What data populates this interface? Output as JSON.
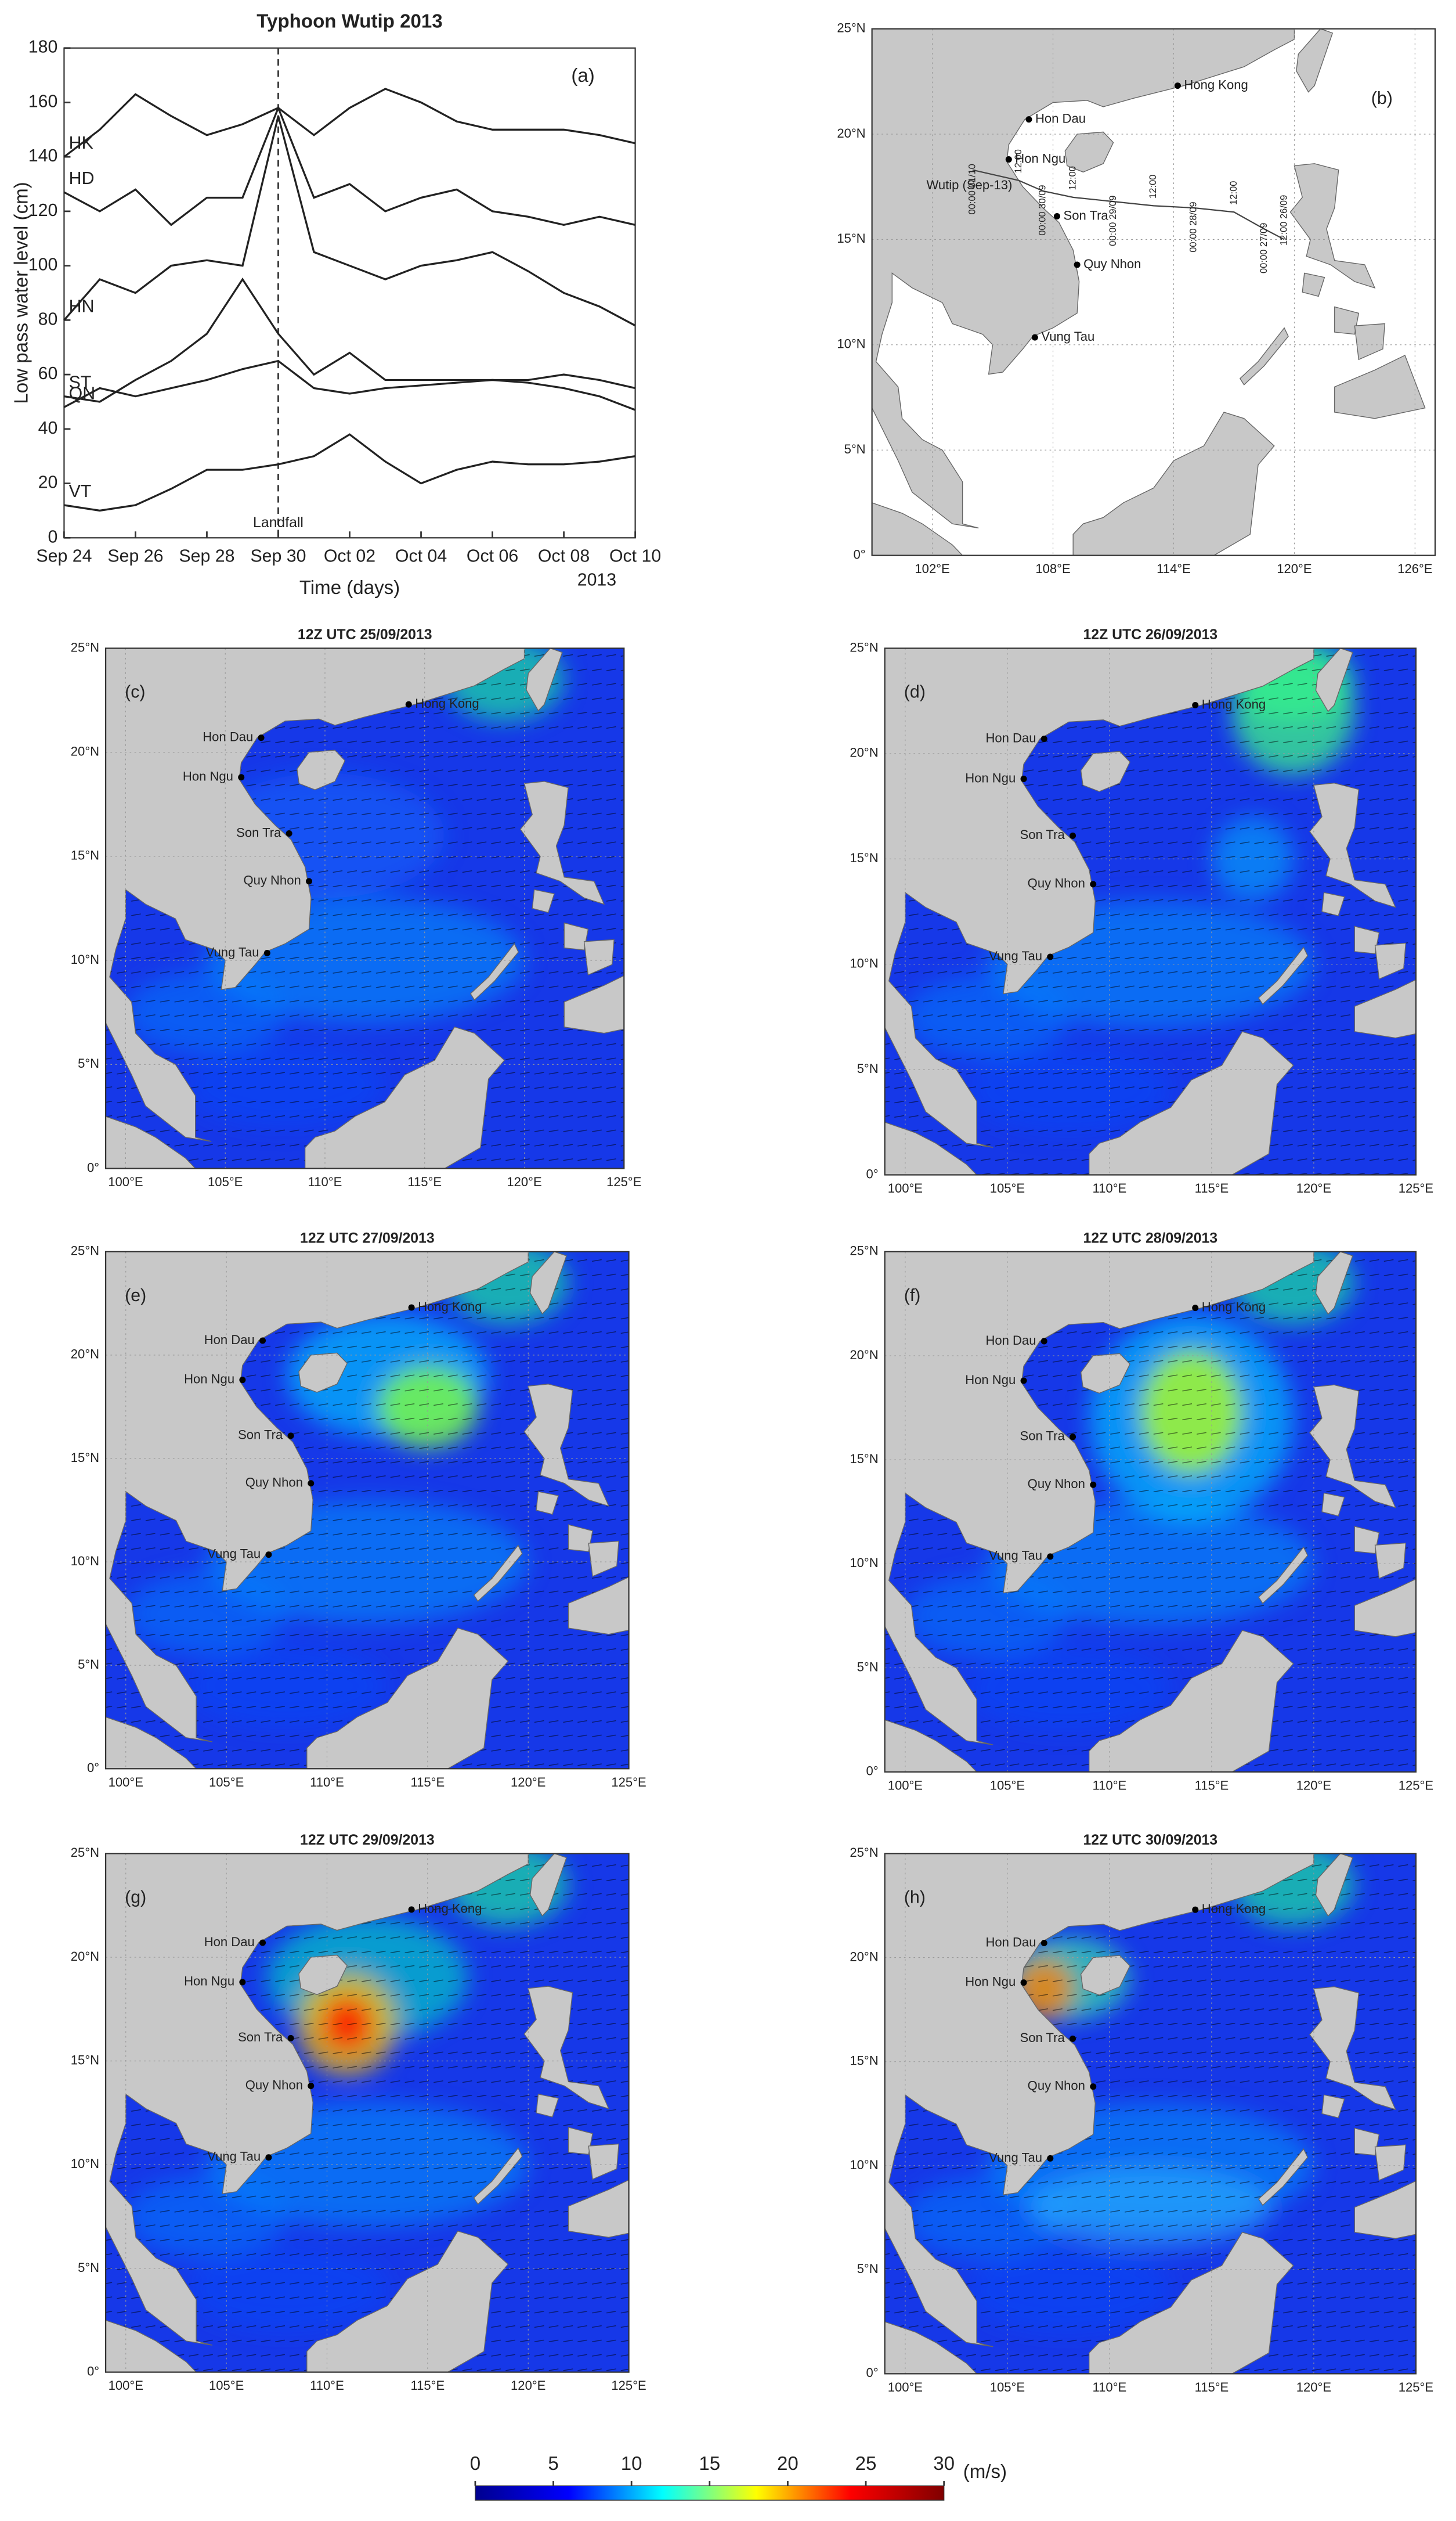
{
  "stations": [
    {
      "name": "Hong Kong",
      "lon": 114.2,
      "lat": 22.3
    },
    {
      "name": "Hon Dau",
      "lon": 106.8,
      "lat": 20.7
    },
    {
      "name": "Hon Ngu",
      "lon": 105.8,
      "lat": 18.8
    },
    {
      "name": "Son Tra",
      "lon": 108.2,
      "lat": 16.1
    },
    {
      "name": "Quy Nhon",
      "lon": 109.2,
      "lat": 13.8
    },
    {
      "name": "Vung Tau",
      "lon": 107.1,
      "lat": 10.35
    }
  ],
  "chart_data": [
    {
      "type": "line",
      "title": "Typhoon Wutip 2013",
      "panel_label": "(a)",
      "xlabel": "Time (days)",
      "ylabel": "Low pass water level (cm)",
      "year_label": "2013",
      "annotation": {
        "text": "Landfall",
        "x": 6
      },
      "x": [
        0,
        1,
        2,
        3,
        4,
        5,
        6,
        7,
        8,
        9,
        10,
        11,
        12,
        13,
        14,
        15,
        16
      ],
      "xlim": [
        0,
        16
      ],
      "xticks": [
        {
          "value": 0,
          "label": "Sep 24"
        },
        {
          "value": 2,
          "label": "Sep 26"
        },
        {
          "value": 4,
          "label": "Sep 28"
        },
        {
          "value": 6,
          "label": "Sep 30"
        },
        {
          "value": 8,
          "label": "Oct 02"
        },
        {
          "value": 10,
          "label": "Oct 04"
        },
        {
          "value": 12,
          "label": "Oct 06"
        },
        {
          "value": 14,
          "label": "Oct 08"
        },
        {
          "value": 16,
          "label": "Oct 10"
        }
      ],
      "ylim": [
        0,
        180
      ],
      "yticks": [
        0,
        20,
        40,
        60,
        80,
        100,
        120,
        140,
        160,
        180
      ],
      "series": [
        {
          "name": "HK",
          "color": "#222222",
          "values": [
            140,
            150,
            163,
            155,
            148,
            152,
            158,
            148,
            158,
            165,
            160,
            153,
            150,
            150,
            150,
            148,
            145
          ]
        },
        {
          "name": "HD",
          "color": "#222222",
          "values": [
            127,
            120,
            128,
            115,
            125,
            125,
            158,
            125,
            130,
            120,
            125,
            128,
            120,
            118,
            115,
            118,
            115
          ]
        },
        {
          "name": "HN",
          "color": "#222222",
          "values": [
            80,
            95,
            90,
            100,
            102,
            100,
            155,
            105,
            100,
            95,
            100,
            102,
            105,
            98,
            90,
            85,
            78
          ]
        },
        {
          "name": "ST",
          "color": "#222222",
          "values": [
            52,
            50,
            58,
            65,
            75,
            95,
            75,
            60,
            68,
            58,
            58,
            58,
            58,
            58,
            60,
            58,
            55
          ]
        },
        {
          "name": "QN",
          "color": "#222222",
          "values": [
            48,
            55,
            52,
            55,
            58,
            62,
            65,
            55,
            53,
            55,
            56,
            57,
            58,
            57,
            55,
            52,
            47
          ]
        },
        {
          "name": "VT",
          "color": "#222222",
          "values": [
            12,
            10,
            12,
            18,
            25,
            25,
            27,
            30,
            38,
            28,
            20,
            25,
            28,
            27,
            27,
            28,
            30
          ]
        }
      ]
    },
    {
      "type": "map",
      "panel_label": "(b)",
      "sea_color": "#ffffff",
      "xlim": [
        99,
        127
      ],
      "ylim": [
        0,
        25
      ],
      "xticks": [
        {
          "value": 102,
          "label": "102°E"
        },
        {
          "value": 108,
          "label": "108°E"
        },
        {
          "value": 114,
          "label": "114°E"
        },
        {
          "value": 120,
          "label": "120°E"
        },
        {
          "value": 126,
          "label": "126°E"
        }
      ],
      "yticks": [
        {
          "value": 0,
          "label": "0°"
        },
        {
          "value": 5,
          "label": "5°N"
        },
        {
          "value": 10,
          "label": "10°N"
        },
        {
          "value": 15,
          "label": "15°N"
        },
        {
          "value": 20,
          "label": "20°N"
        },
        {
          "value": 25,
          "label": "25°N"
        }
      ],
      "track": {
        "name": "Wutip (Sep-13)",
        "lon": [
          119.5,
          118.5,
          117,
          115,
          113,
          111,
          109,
          107.5,
          106.3,
          104
        ],
        "lat": [
          15,
          15.5,
          16.3,
          16.5,
          16.6,
          16.8,
          17,
          17.3,
          17.8,
          18.3
        ],
        "labels": [
          "12:00 26/09",
          "00:00 27/09",
          "12:00",
          "00:00 28/09",
          "12:00",
          "00:00 29/09",
          "12:00",
          "00:00 30/09",
          "12:00",
          "00:00 01/10"
        ]
      }
    },
    {
      "type": "wind",
      "title": "12Z UTC 25/09/2013",
      "panel_label": "(c)",
      "xlim": [
        99,
        125
      ],
      "ylim": [
        0,
        25
      ],
      "xticks": [
        {
          "value": 100,
          "label": "100°E"
        },
        {
          "value": 105,
          "label": "105°E"
        },
        {
          "value": 110,
          "label": "110°E"
        },
        {
          "value": 115,
          "label": "115°E"
        },
        {
          "value": 120,
          "label": "120°E"
        },
        {
          "value": 125,
          "label": "125°E"
        }
      ],
      "yticks": [
        {
          "value": 0,
          "label": "0°"
        },
        {
          "value": 5,
          "label": "5°N"
        },
        {
          "value": 10,
          "label": "10°N"
        },
        {
          "value": 15,
          "label": "15°N"
        },
        {
          "value": 20,
          "label": "20°N"
        },
        {
          "value": 25,
          "label": "25°N"
        }
      ]
    },
    {
      "type": "wind",
      "title": "12Z UTC 26/09/2013",
      "panel_label": "(d)",
      "xlim": [
        99,
        125
      ],
      "ylim": [
        0,
        25
      ],
      "xticks": [
        {
          "value": 100,
          "label": "100°E"
        },
        {
          "value": 105,
          "label": "105°E"
        },
        {
          "value": 110,
          "label": "110°E"
        },
        {
          "value": 115,
          "label": "115°E"
        },
        {
          "value": 120,
          "label": "120°E"
        },
        {
          "value": 125,
          "label": "125°E"
        }
      ],
      "yticks": [
        {
          "value": 0,
          "label": "0°"
        },
        {
          "value": 5,
          "label": "5°N"
        },
        {
          "value": 10,
          "label": "10°N"
        },
        {
          "value": 15,
          "label": "15°N"
        },
        {
          "value": 20,
          "label": "20°N"
        },
        {
          "value": 25,
          "label": "25°N"
        }
      ]
    },
    {
      "type": "wind",
      "title": "12Z UTC 27/09/2013",
      "panel_label": "(e)",
      "xlim": [
        99,
        125
      ],
      "ylim": [
        0,
        25
      ],
      "xticks": [
        {
          "value": 100,
          "label": "100°E"
        },
        {
          "value": 105,
          "label": "105°E"
        },
        {
          "value": 110,
          "label": "110°E"
        },
        {
          "value": 115,
          "label": "115°E"
        },
        {
          "value": 120,
          "label": "120°E"
        },
        {
          "value": 125,
          "label": "125°E"
        }
      ],
      "yticks": [
        {
          "value": 0,
          "label": "0°"
        },
        {
          "value": 5,
          "label": "5°N"
        },
        {
          "value": 10,
          "label": "10°N"
        },
        {
          "value": 15,
          "label": "15°N"
        },
        {
          "value": 20,
          "label": "20°N"
        },
        {
          "value": 25,
          "label": "25°N"
        }
      ]
    },
    {
      "type": "wind",
      "title": "12Z UTC 28/09/2013",
      "panel_label": "(f)",
      "xlim": [
        99,
        125
      ],
      "ylim": [
        0,
        25
      ],
      "xticks": [
        {
          "value": 100,
          "label": "100°E"
        },
        {
          "value": 105,
          "label": "105°E"
        },
        {
          "value": 110,
          "label": "110°E"
        },
        {
          "value": 115,
          "label": "115°E"
        },
        {
          "value": 120,
          "label": "120°E"
        },
        {
          "value": 125,
          "label": "125°E"
        }
      ],
      "yticks": [
        {
          "value": 0,
          "label": "0°"
        },
        {
          "value": 5,
          "label": "5°N"
        },
        {
          "value": 10,
          "label": "10°N"
        },
        {
          "value": 15,
          "label": "15°N"
        },
        {
          "value": 20,
          "label": "20°N"
        },
        {
          "value": 25,
          "label": "25°N"
        }
      ]
    },
    {
      "type": "wind",
      "title": "12Z UTC 29/09/2013",
      "panel_label": "(g)",
      "xlim": [
        99,
        125
      ],
      "ylim": [
        0,
        25
      ],
      "xticks": [
        {
          "value": 100,
          "label": "100°E"
        },
        {
          "value": 105,
          "label": "105°E"
        },
        {
          "value": 110,
          "label": "110°E"
        },
        {
          "value": 115,
          "label": "115°E"
        },
        {
          "value": 120,
          "label": "120°E"
        },
        {
          "value": 125,
          "label": "125°E"
        }
      ],
      "yticks": [
        {
          "value": 0,
          "label": "0°"
        },
        {
          "value": 5,
          "label": "5°N"
        },
        {
          "value": 10,
          "label": "10°N"
        },
        {
          "value": 15,
          "label": "15°N"
        },
        {
          "value": 20,
          "label": "20°N"
        },
        {
          "value": 25,
          "label": "25°N"
        }
      ]
    },
    {
      "type": "wind",
      "title": "12Z UTC 30/09/2013",
      "panel_label": "(h)",
      "xlim": [
        99,
        125
      ],
      "ylim": [
        0,
        25
      ],
      "xticks": [
        {
          "value": 100,
          "label": "100°E"
        },
        {
          "value": 105,
          "label": "105°E"
        },
        {
          "value": 110,
          "label": "110°E"
        },
        {
          "value": 115,
          "label": "115°E"
        },
        {
          "value": 120,
          "label": "120°E"
        },
        {
          "value": 125,
          "label": "125°E"
        }
      ],
      "yticks": [
        {
          "value": 0,
          "label": "0°"
        },
        {
          "value": 5,
          "label": "5°N"
        },
        {
          "value": 10,
          "label": "10°N"
        },
        {
          "value": 15,
          "label": "15°N"
        },
        {
          "value": 20,
          "label": "20°N"
        },
        {
          "value": 25,
          "label": "25°N"
        }
      ]
    },
    {
      "type": "colorbar",
      "unit": "(m/s)",
      "xlim": [
        0,
        30
      ],
      "xticks": [
        0,
        5,
        10,
        15,
        20,
        25,
        30
      ],
      "colors": [
        "#00008f",
        "#0000ff",
        "#00ffff",
        "#ffff00",
        "#ff0000",
        "#800000"
      ]
    }
  ]
}
